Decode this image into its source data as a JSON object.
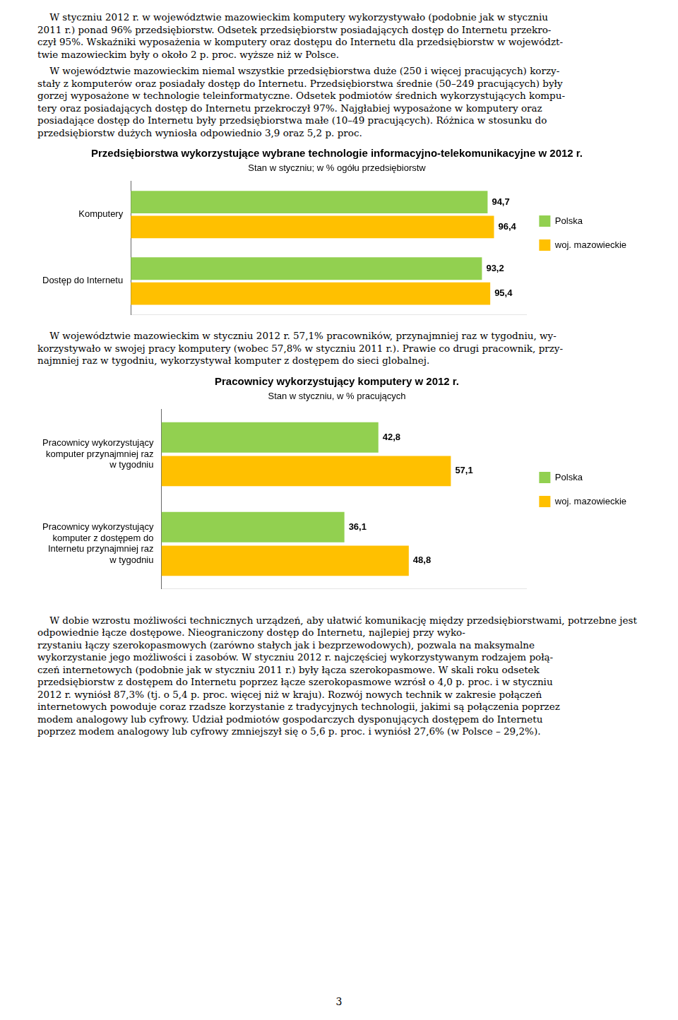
{
  "chart_data": [
    {
      "type": "bar",
      "orientation": "horizontal",
      "title": "Przedsiębiorstwa wykorzystujące wybrane technologie informacyjno-telekomunikacyjne w 2012 r.",
      "subtitle": "Stan w styczniu; w % ogółu przedsiębiorstw",
      "categories": [
        "Komputery",
        "Dostęp do Internetu"
      ],
      "series": [
        {
          "name": "Polska",
          "color": "#92d050",
          "values": [
            94.7,
            93.2
          ],
          "value_labels": [
            "94,7",
            "93,2"
          ]
        },
        {
          "name": "woj. mazowieckie",
          "color": "#ffc000",
          "values": [
            96.4,
            95.4
          ],
          "value_labels": [
            "96,4",
            "95,4"
          ]
        }
      ],
      "xlim": [
        0,
        105
      ],
      "grid": false,
      "legend": "right",
      "data_labels": true,
      "tick_labels": "y"
    },
    {
      "type": "bar",
      "orientation": "horizontal",
      "title": "Pracownicy wykorzystujący komputery w 2012 r.",
      "subtitle": "Stan w styczniu, w % pracujących",
      "categories": [
        "Pracownicy wykorzystujący\nkomputer przynajmniej raz\nw tygodniu",
        "Pracownicy wykorzystujący\nkomputer z dostępem do\nInternetu przynajmniej raz\nw tygodniu"
      ],
      "series": [
        {
          "name": "Polska",
          "color": "#92d050",
          "values": [
            42.8,
            36.1
          ],
          "value_labels": [
            "42,8",
            "36,1"
          ]
        },
        {
          "name": "woj. mazowieckie",
          "color": "#ffc000",
          "values": [
            57.1,
            48.8
          ],
          "value_labels": [
            "57,1",
            "48,8"
          ]
        }
      ],
      "xlim": [
        0,
        72
      ],
      "grid": false,
      "legend": "right",
      "data_labels": true,
      "tick_labels": "y"
    }
  ],
  "text_before": [
    [
      "    W styczniu 2012 r. w województwie mazowieckim komputery wykorzystywało (podobnie jak w styczniu",
      "2011 r.) ponad 96% przedsiębiorstw. Odsetek przedsiębiorstw posiadających dostęp do Internetu przekro-",
      "czył 95%. Wskaźniki wyposażenia w komputery oraz dostępu do Internetu dla przedsiębiorstw w województ-",
      "twie mazowieckim były o około 2 p. proc. wyższe niż w Polsce."
    ],
    [
      "    W województwie mazowieckim niemal wszystkie przedsiębiorstwa duże (250 i więcej pracujących) korzy-",
      "stały z komputerów oraz posiadały dostęp do Internetu. Przedsiębiorstwa średnie (50–249 pracujących) były",
      "gorzej wyposażone w technologie teleinformatyczne. Odsetek podmiotów średnich wykorzystujących kompu-",
      "tery oraz posiadających dostęp do Internetu przekroczył 97%. Najgłabiej wyposażone w komputery oraz",
      "posiadające dostęp do Internetu były przedsiębiorstwa małe (10–49 pracujących). Różnica w stosunku do",
      "przedsiębiorstw dużych wyniosła odpowiednio 3,9 oraz 5,2 p. proc."
    ]
  ],
  "text_between": [
    [
      "    W województwie mazowieckim w styczniu 2012 r. 57,1% pracowników, przynajmniej raz w tygodniu, wy-",
      "korzystywało w swojej pracy komputery (wobec 57,8% w styczniu 2011 r.). Prawie co drugi pracownik, przy-",
      "najmniej raz w tygodniu, wykorzystywał komputer z dostępem do sieci globalnej."
    ]
  ],
  "text_after": [
    [
      "    W dobie wzrostu możliwości technicznych urządzeń, aby ułatwić komunikację między przedsiębiorstwami, potrzebne jest odpowiednie łącze dostępowe. Nieograniczony dostęp do Internetu, najlepiej przy wyko-",
      "rzystaniu łączy szerokopasmowych (zarówno stałych jak i bezprzewodowych), pozwala na maksymalne",
      "wykorzystanie jego możliwości i zasobów. W styczniu 2012 r. najczęściej wykorzystywanym rodzajem połą-",
      "czeń internetowych (podobnie jak w styczniu 2011 r.) były łącza szerokopasmowe. W skali roku odsetek",
      "przedsiębiorstw z dostępem do Internetu poprzez łącze szerokopasmowe wzrósł o 4,0 p. proc. i w styczniu",
      "2012 r. wyniósł 87,3% (tj. o 5,4 p. proc. więcej niż w kraju). Rozwój nowych technik w zakresie połączeń",
      "internetowych powoduje coraz rzadsze korzystanie z tradycyjnych technologii, jakimi są połączenia poprzez",
      "modem analogowy lub cyfrowy. Udział podmiotów gospodarczych dysponujących dostępem do Internetu",
      "poprzez modem analogowy lub cyfrowy zmniejszył się o 5,6 p. proc. i wyniósł 27,6% (w Polsce – 29,2%)."
    ]
  ],
  "page_number": "3"
}
